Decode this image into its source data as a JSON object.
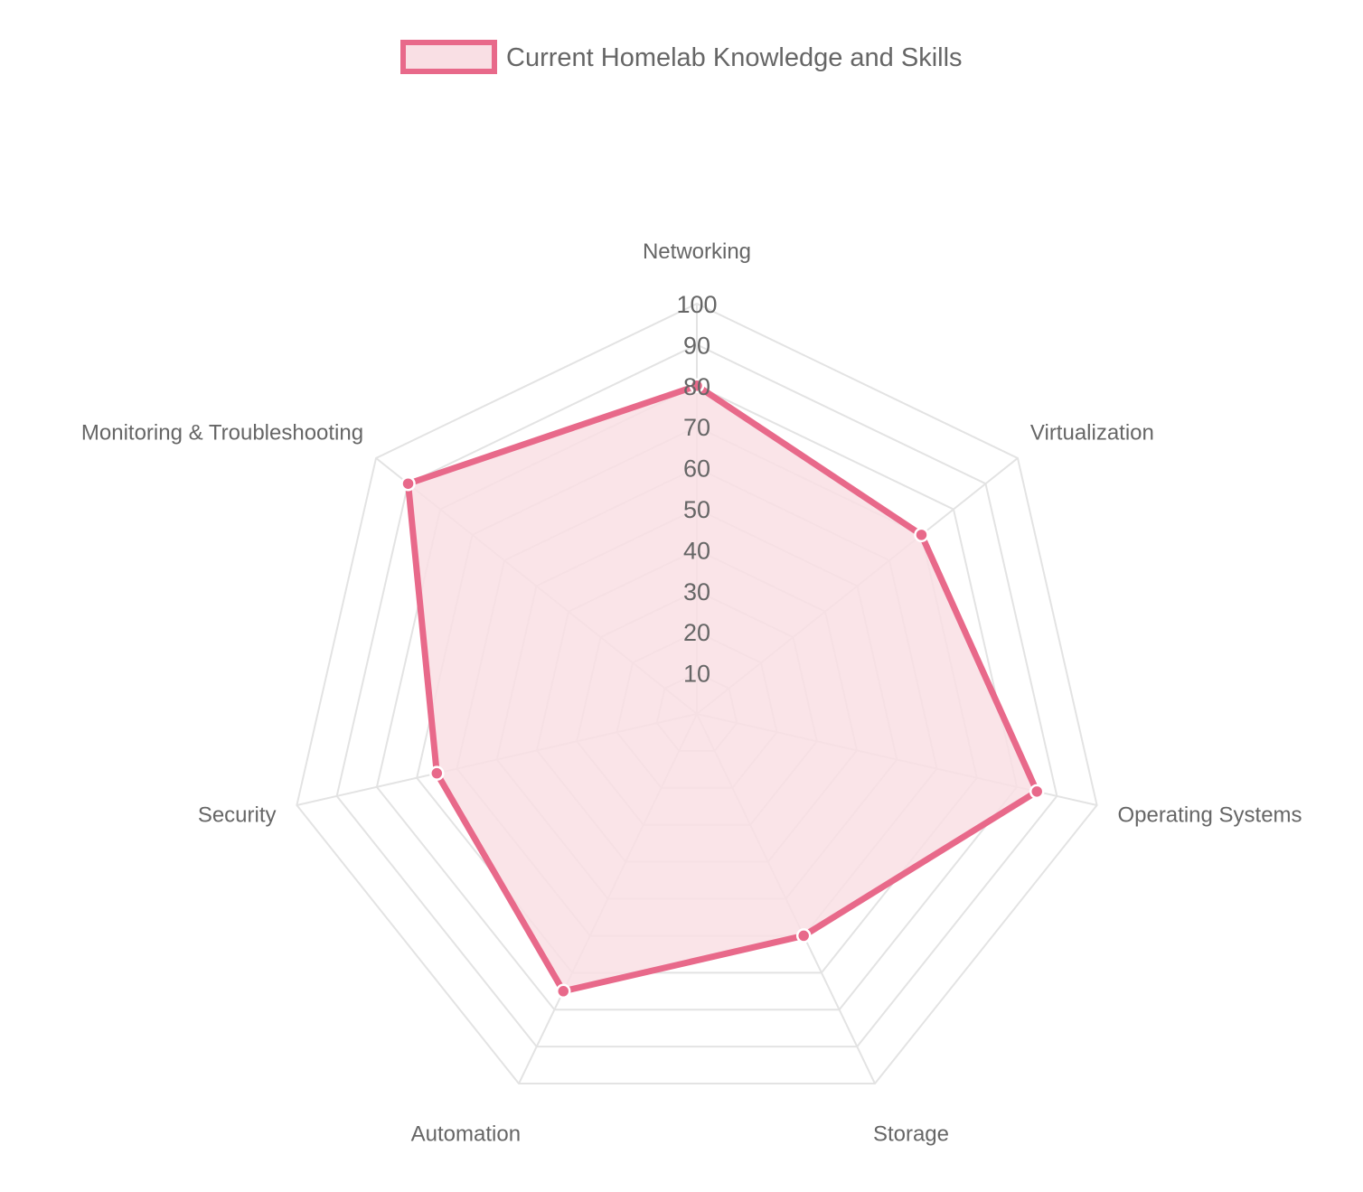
{
  "chart_data": {
    "type": "radar",
    "title": "",
    "legend": {
      "position": "top",
      "entries": [
        "Current Homelab Knowledge and Skills"
      ]
    },
    "categories": [
      "Networking",
      "Virtualization",
      "Operating Systems",
      "Storage",
      "Automation",
      "Security",
      "Monitoring & Troubleshooting"
    ],
    "series": [
      {
        "name": "Current Homelab Knowledge and Skills",
        "values": [
          80,
          70,
          85,
          60,
          75,
          65,
          90
        ]
      }
    ],
    "r_range": [
      0,
      100
    ],
    "r_ticks": [
      "10",
      "20",
      "30",
      "40",
      "50",
      "60",
      "70",
      "80",
      "90",
      "100"
    ],
    "grid": true,
    "colors": {
      "line": "#e8698a",
      "fill": "#f9dfe4",
      "grid": "#e3e3e3",
      "point_stroke": "#ffffff",
      "text": "#666666"
    }
  }
}
